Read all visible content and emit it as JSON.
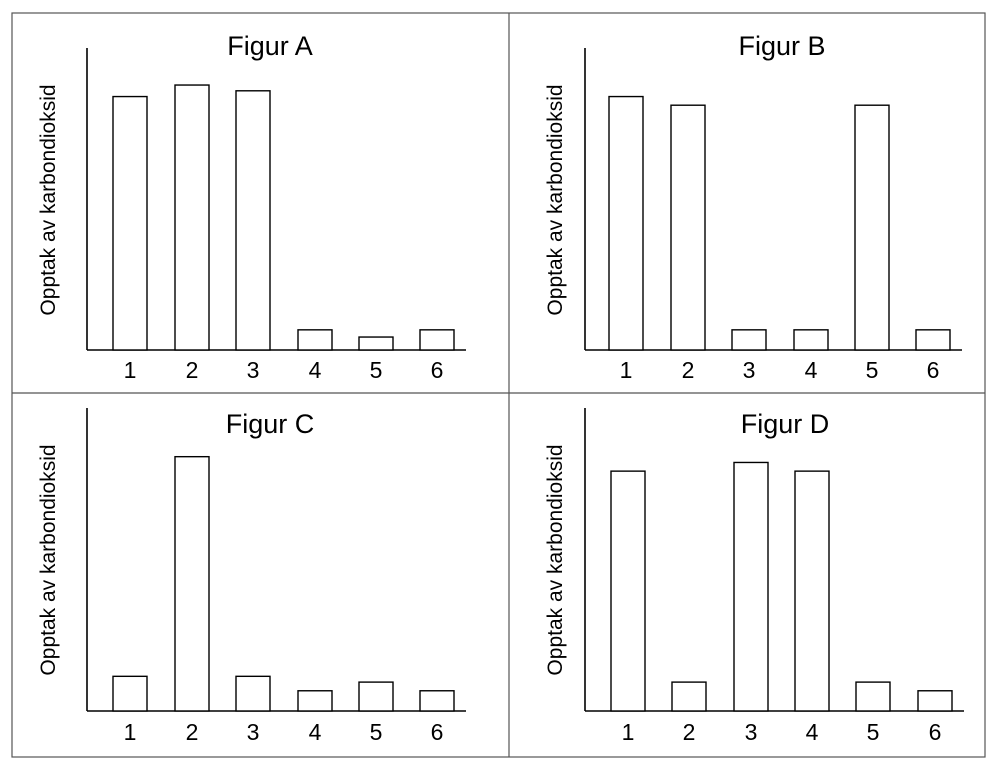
{
  "chart_data": [
    {
      "type": "bar",
      "title": "Figur A",
      "xlabel": "",
      "ylabel": "Opptak av karbondioksid",
      "categories": [
        "1",
        "2",
        "3",
        "4",
        "5",
        "6"
      ],
      "values": [
        88,
        92,
        90,
        7,
        4.5,
        7
      ],
      "ylim": [
        0,
        100
      ],
      "y_ticks_shown": false,
      "grid": false
    },
    {
      "type": "bar",
      "title": "Figur B",
      "xlabel": "",
      "ylabel": "Opptak av karbondioksid",
      "categories": [
        "1",
        "2",
        "3",
        "4",
        "5",
        "6"
      ],
      "values": [
        88,
        85,
        7,
        7,
        85,
        7
      ],
      "ylim": [
        0,
        100
      ],
      "y_ticks_shown": false,
      "grid": false
    },
    {
      "type": "bar",
      "title": "Figur C",
      "xlabel": "",
      "ylabel": "Opptak av karbondioksid",
      "categories": [
        "1",
        "2",
        "3",
        "4",
        "5",
        "6"
      ],
      "values": [
        12,
        88,
        12,
        7,
        10,
        7
      ],
      "ylim": [
        0,
        100
      ],
      "y_ticks_shown": false,
      "grid": false
    },
    {
      "type": "bar",
      "title": "Figur D",
      "xlabel": "",
      "ylabel": "Opptak av karbondioksid",
      "categories": [
        "1",
        "2",
        "3",
        "4",
        "5",
        "6"
      ],
      "values": [
        83,
        10,
        86,
        83,
        10,
        7
      ],
      "ylim": [
        0,
        100
      ],
      "y_ticks_shown": false,
      "grid": false
    }
  ]
}
